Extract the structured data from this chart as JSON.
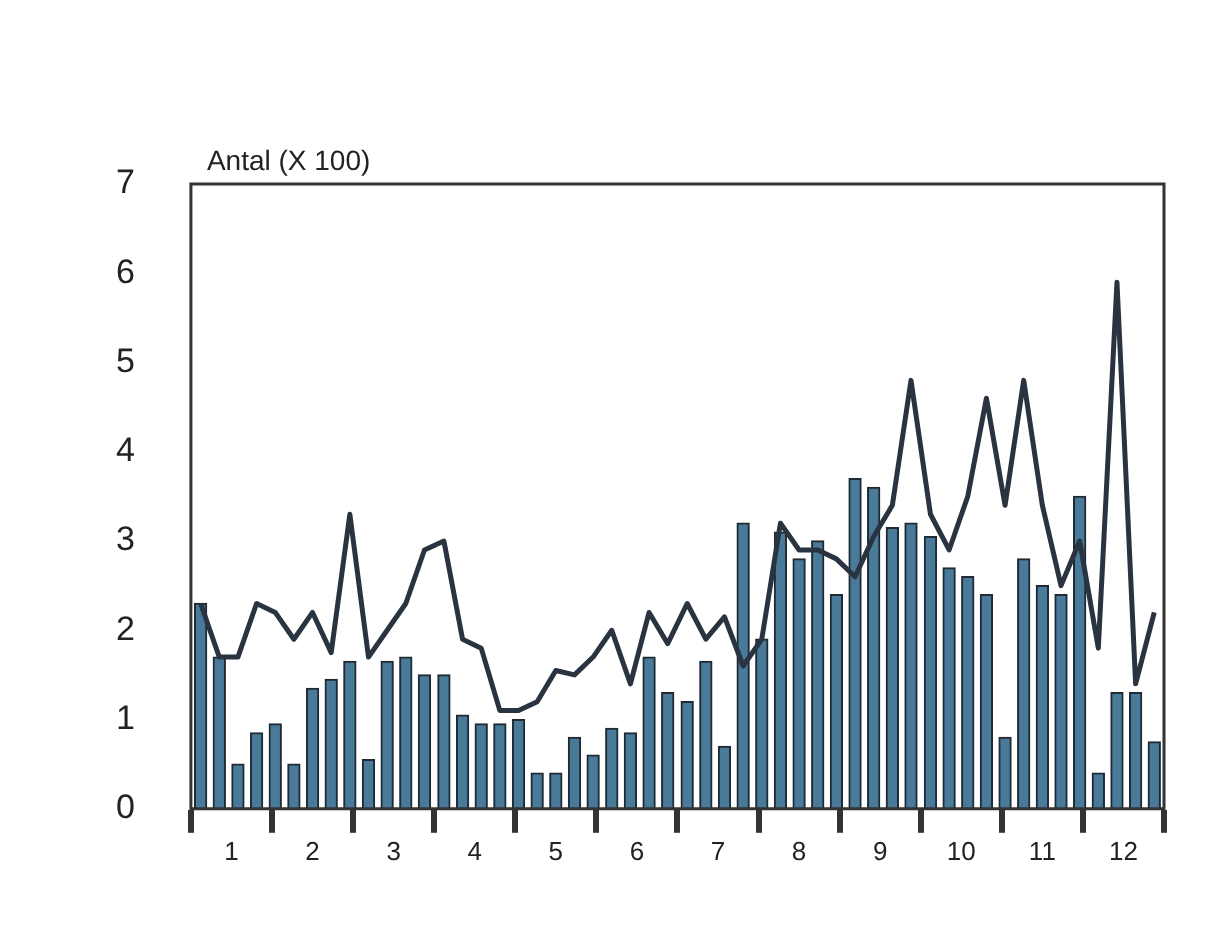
{
  "chart_data": {
    "type": "bar",
    "ylabel": "Antal (X 100)",
    "marker": "none",
    "x": [
      0.12,
      0.35,
      0.58,
      0.81,
      1.04,
      1.27,
      1.5,
      1.73,
      1.96,
      2.19,
      2.42,
      2.65,
      2.88,
      3.12,
      3.35,
      3.58,
      3.81,
      4.04,
      4.27,
      4.5,
      4.73,
      4.96,
      5.19,
      5.42,
      5.65,
      5.88,
      6.12,
      6.35,
      6.58,
      6.81,
      7.04,
      7.27,
      7.5,
      7.73,
      7.96,
      8.19,
      8.42,
      8.65,
      8.88,
      9.12,
      9.35,
      9.58,
      9.81,
      10.04,
      10.27,
      10.5,
      10.73,
      10.96,
      11.19,
      11.42,
      11.65,
      11.88
    ],
    "series": [
      {
        "color": "#4a7a9a",
        "values": [
          2.3,
          1.7,
          0.5,
          0.85,
          0.95,
          0.5,
          1.35,
          1.45,
          1.65,
          0.55,
          1.65,
          1.7,
          1.5,
          1.5,
          1.05,
          0.95,
          0.95,
          1.0,
          0.4,
          0.4,
          0.8,
          0.6,
          0.9,
          0.85,
          1.7,
          1.3,
          1.2,
          1.65,
          0.7,
          3.2,
          1.9,
          3.1,
          2.8,
          3.0,
          2.4,
          3.7,
          3.6,
          3.15,
          3.2,
          3.05,
          2.7,
          2.6,
          2.4,
          0.8,
          2.8,
          2.5,
          2.4,
          3.5,
          0.4,
          1.3,
          1.3,
          0.75
        ]
      },
      {
        "type": "line",
        "color": "#2a3440",
        "values": [
          2.3,
          1.7,
          1.7,
          2.3,
          2.2,
          1.9,
          2.2,
          1.75,
          3.3,
          1.7,
          2.0,
          2.3,
          2.9,
          3.0,
          1.9,
          1.8,
          1.1,
          1.1,
          1.2,
          1.55,
          1.5,
          1.7,
          2.0,
          1.4,
          2.2,
          1.85,
          2.3,
          1.9,
          2.15,
          1.6,
          1.9,
          3.2,
          2.9,
          2.9,
          2.8,
          2.6,
          3.05,
          3.4,
          4.8,
          3.3,
          2.9,
          3.5,
          4.6,
          3.4,
          4.8,
          3.4,
          2.5,
          3.0,
          1.8,
          5.9,
          1.4,
          2.2
        ]
      }
    ],
    "xlim": [
      0,
      12
    ],
    "xticks": [
      {
        "value": 0,
        "label": null
      },
      {
        "value": 0.5,
        "label": "1"
      },
      {
        "value": 1,
        "label": null
      },
      {
        "value": 1.5,
        "label": "2"
      },
      {
        "value": 2,
        "label": null
      },
      {
        "value": 2.5,
        "label": "3"
      },
      {
        "value": 3,
        "label": null
      },
      {
        "value": 3.5,
        "label": "4"
      },
      {
        "value": 4,
        "label": null
      },
      {
        "value": 4.5,
        "label": "5"
      },
      {
        "value": 5,
        "label": null
      },
      {
        "value": 5.5,
        "label": "6"
      },
      {
        "value": 6,
        "label": null
      },
      {
        "value": 6.5,
        "label": "7"
      },
      {
        "value": 7,
        "label": null
      },
      {
        "value": 7.5,
        "label": "8"
      },
      {
        "value": 8,
        "label": null
      },
      {
        "value": 8.5,
        "label": "9"
      },
      {
        "value": 9,
        "label": null
      },
      {
        "value": 9.5,
        "label": "10"
      },
      {
        "value": 10,
        "label": null
      },
      {
        "value": 10.5,
        "label": "11"
      },
      {
        "value": 11,
        "label": null
      },
      {
        "value": 11.5,
        "label": "12"
      },
      {
        "value": 12,
        "label": null
      }
    ],
    "ylim": [
      0,
      7
    ],
    "yticks": [
      0,
      1,
      2,
      3,
      4,
      5,
      6,
      7
    ]
  }
}
